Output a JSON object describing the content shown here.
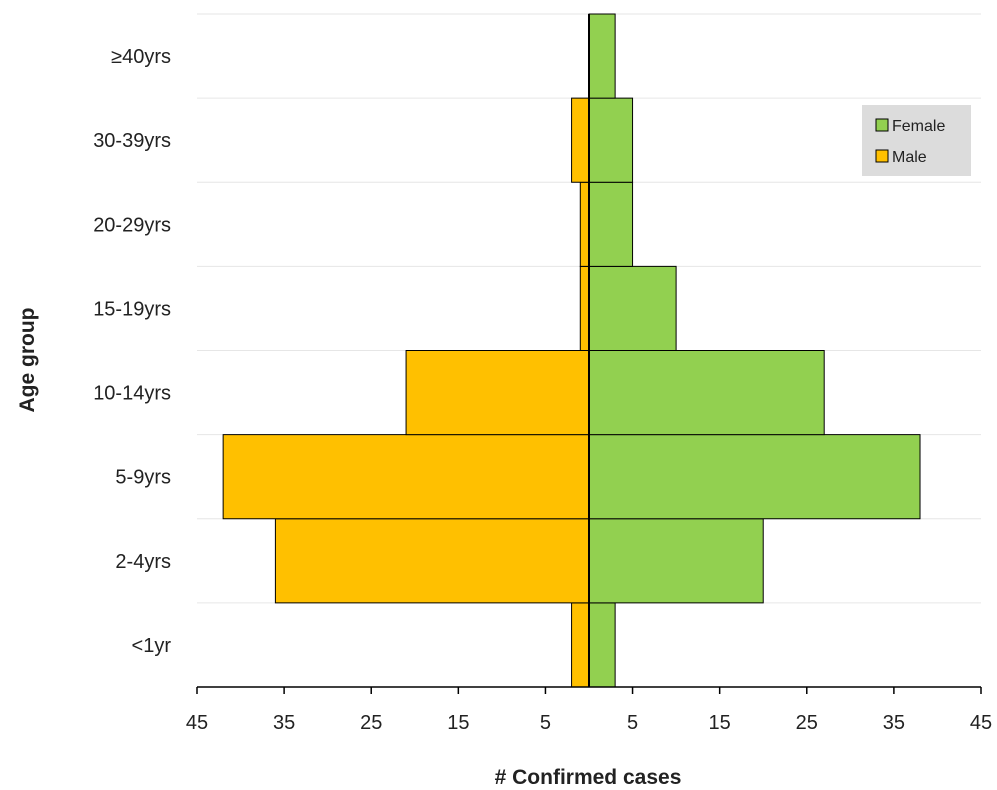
{
  "chart_data": {
    "type": "bar",
    "orientation": "horizontal-pyramid",
    "categories": [
      "<1yr",
      "2-4yrs",
      "5-9yrs",
      "10-14yrs",
      "15-19yrs",
      "20-29yrs",
      "30-39yrs",
      "≥40yrs"
    ],
    "series": [
      {
        "name": "Female",
        "side": "right",
        "color": "#92D050",
        "values": [
          3,
          20,
          38,
          27,
          10,
          5,
          5,
          3
        ]
      },
      {
        "name": "Male",
        "side": "left",
        "color": "#FFC000",
        "values": [
          2,
          36,
          42,
          21,
          1,
          1,
          2,
          0
        ]
      }
    ],
    "xlabel": "# Confirmed cases",
    "ylabel": "Age group",
    "xlim": [
      -45,
      45
    ],
    "xticks": [
      -45,
      -35,
      -25,
      -15,
      -5,
      5,
      15,
      25,
      35,
      45
    ],
    "xtick_labels": [
      "45",
      "35",
      "25",
      "15",
      "5",
      "5",
      "15",
      "25",
      "35",
      "45"
    ],
    "grid": "horizontal",
    "legend": {
      "position": "top-right",
      "background": "#DCDCDC",
      "entries": [
        "Female",
        "Male"
      ]
    }
  }
}
